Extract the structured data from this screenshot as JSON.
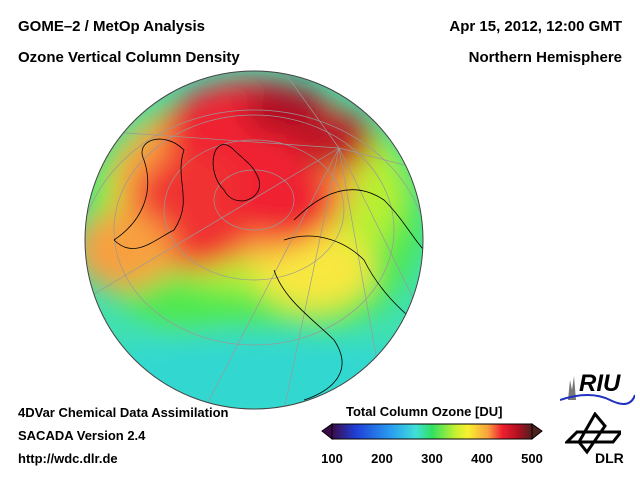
{
  "header": {
    "title_left_1": "GOME–2 / MetOp Analysis",
    "title_left_2": "Ozone Vertical Column Density",
    "title_right_1": "Apr 15, 2012, 12:00 GMT",
    "title_right_2": "Northern Hemisphere"
  },
  "footer": {
    "line1": "4DVar Chemical Data Assimilation",
    "line2": "SACADA Version 2.4",
    "line3": "http://wdc.dlr.de"
  },
  "colorbar": {
    "title": "Total Column Ozone [DU]",
    "ticks": [
      "100",
      "200",
      "300",
      "400",
      "500"
    ],
    "range": [
      100,
      500
    ],
    "colors": [
      "#3a0a4a",
      "#1f3fd8",
      "#2aa0f0",
      "#40e0d8",
      "#30e060",
      "#c8f030",
      "#f8f030",
      "#f8a040",
      "#f02030",
      "#b01020",
      "#502020"
    ]
  },
  "logos": {
    "riu": "RIU",
    "dlr": "DLR"
  }
}
